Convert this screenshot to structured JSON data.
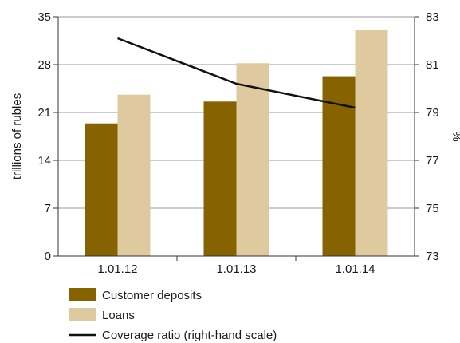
{
  "chart_data": {
    "type": "bar",
    "categories": [
      "1.01.12",
      "1.01.13",
      "1.01.14"
    ],
    "series": [
      {
        "name": "Customer deposits",
        "type": "bar",
        "axis": "left",
        "values": [
          19.4,
          22.6,
          26.3
        ],
        "color": "#876300"
      },
      {
        "name": "Loans",
        "type": "bar",
        "axis": "left",
        "values": [
          23.6,
          28.2,
          33.1
        ],
        "color": "#dfc99e"
      },
      {
        "name": "Coverage ratio (right-hand scale)",
        "type": "line",
        "axis": "right",
        "values": [
          82.1,
          80.2,
          79.2
        ],
        "color": "#111111"
      }
    ],
    "ylabel": "trillions of rubles",
    "y2label": "%",
    "ylim": [
      0,
      35
    ],
    "yticks": [
      "0",
      "7",
      "14",
      "21",
      "28",
      "35"
    ],
    "y2lim": [
      73,
      83
    ],
    "y2ticks": [
      "73",
      "75",
      "77",
      "79",
      "81",
      "83"
    ],
    "grid": "horizontal",
    "legend": "bottom-left"
  }
}
